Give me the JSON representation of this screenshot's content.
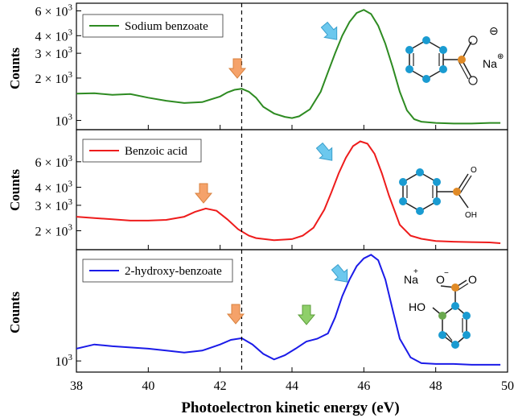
{
  "x_axis": {
    "label": "Photoelectron kinetic energy (eV)",
    "range": [
      38,
      50
    ],
    "ticks": [
      38,
      40,
      42,
      44,
      46,
      48,
      50
    ],
    "dashed_line_x": 42.6
  },
  "colors": {
    "green": "#2e8b22",
    "red": "#ee1c1c",
    "blue": "#1b1be8",
    "orange_arrow": "#f5a26a",
    "blue_arrow": "#6cc8ee",
    "green_arrow": "#8fcf6a",
    "atom_blue": "#1a9bd1",
    "atom_orange": "#e08a26",
    "atom_green": "#6aa84f"
  },
  "chart_data": [
    {
      "type": "line",
      "ylabel": "Counts",
      "yscale": "log",
      "ylim": [
        860,
        6800
      ],
      "y_ticks": [
        {
          "value": 1000,
          "label": "10",
          "exp": "3"
        },
        {
          "value": 2000,
          "label": "2 × 10",
          "exp": "3"
        },
        {
          "value": 3000,
          "label": "3 × 10",
          "exp": "3"
        },
        {
          "value": 4000,
          "label": "4 × 10",
          "exp": "3"
        },
        {
          "value": 6000,
          "label": "6 × 10",
          "exp": "3"
        }
      ],
      "series": [
        {
          "name": "Sodium benzoate",
          "color": "#2e8b22",
          "x": [
            38.0,
            38.5,
            39.0,
            39.5,
            40.0,
            40.5,
            41.0,
            41.5,
            42.0,
            42.2,
            42.4,
            42.6,
            42.8,
            43.0,
            43.2,
            43.5,
            43.8,
            44.0,
            44.2,
            44.5,
            44.8,
            45.0,
            45.2,
            45.4,
            45.6,
            45.8,
            46.0,
            46.2,
            46.4,
            46.6,
            46.8,
            47.0,
            47.2,
            47.4,
            47.6,
            48.0,
            48.5,
            49.0,
            49.5,
            49.8
          ],
          "y": [
            1550,
            1560,
            1520,
            1540,
            1450,
            1380,
            1330,
            1350,
            1480,
            1580,
            1650,
            1680,
            1600,
            1450,
            1250,
            1120,
            1060,
            1040,
            1070,
            1200,
            1600,
            2200,
            3000,
            4000,
            5000,
            5800,
            6100,
            5700,
            4700,
            3500,
            2400,
            1600,
            1180,
            1020,
            980,
            960,
            950,
            950,
            960,
            960
          ]
        }
      ],
      "annotations": [
        "O",
        "⊖",
        "Na",
        "⊕"
      ]
    },
    {
      "type": "line",
      "ylabel": "Counts",
      "yscale": "log",
      "ylim": [
        1480,
        10000
      ],
      "y_ticks": [
        {
          "value": 2000,
          "label": "2 × 10",
          "exp": "3"
        },
        {
          "value": 3000,
          "label": "3 × 10",
          "exp": "3"
        },
        {
          "value": 4000,
          "label": "4 × 10",
          "exp": "3"
        },
        {
          "value": 6000,
          "label": "6 × 10",
          "exp": "3"
        }
      ],
      "series": [
        {
          "name": "Benzoic acid",
          "color": "#ee1c1c",
          "x": [
            38.0,
            38.5,
            39.0,
            39.5,
            40.0,
            40.5,
            41.0,
            41.3,
            41.6,
            41.9,
            42.2,
            42.5,
            42.8,
            43.0,
            43.5,
            44.0,
            44.3,
            44.6,
            44.9,
            45.1,
            45.3,
            45.5,
            45.7,
            45.9,
            46.1,
            46.3,
            46.5,
            46.7,
            47.0,
            47.3,
            47.6,
            48.0,
            48.5,
            49.0,
            49.5,
            49.8
          ],
          "y": [
            2500,
            2450,
            2400,
            2350,
            2350,
            2380,
            2500,
            2700,
            2850,
            2750,
            2400,
            2050,
            1850,
            1780,
            1720,
            1750,
            1850,
            2100,
            2800,
            3700,
            5000,
            6400,
            7700,
            8300,
            8000,
            6800,
            5000,
            3500,
            2200,
            1850,
            1760,
            1700,
            1680,
            1670,
            1660,
            1640
          ]
        }
      ],
      "annotations": [
        "O",
        "OH"
      ]
    },
    {
      "type": "line",
      "ylabel": "Counts",
      "yscale": "log",
      "ylim": [
        860,
        4500
      ],
      "y_ticks": [
        {
          "value": 1000,
          "label": "10",
          "exp": "3"
        }
      ],
      "series": [
        {
          "name": "2-hydroxy-benzoate",
          "color": "#1b1be8",
          "x": [
            38.0,
            38.5,
            39.0,
            39.5,
            40.0,
            40.5,
            41.0,
            41.5,
            42.0,
            42.3,
            42.6,
            42.9,
            43.2,
            43.5,
            43.8,
            44.1,
            44.4,
            44.7,
            45.0,
            45.2,
            45.4,
            45.6,
            45.8,
            46.0,
            46.2,
            46.4,
            46.6,
            46.8,
            47.0,
            47.3,
            47.6,
            48.0,
            48.5,
            49.0,
            49.5,
            49.8
          ],
          "y": [
            1180,
            1250,
            1220,
            1200,
            1180,
            1150,
            1120,
            1150,
            1250,
            1330,
            1360,
            1250,
            1100,
            1020,
            1080,
            1180,
            1300,
            1350,
            1450,
            1800,
            2400,
            3000,
            3600,
            4000,
            4200,
            3900,
            3000,
            2000,
            1350,
            1050,
            970,
            960,
            960,
            950,
            950,
            950
          ]
        }
      ],
      "annotations": [
        "Na",
        "+",
        "O",
        "−",
        "O",
        "HO"
      ]
    }
  ]
}
